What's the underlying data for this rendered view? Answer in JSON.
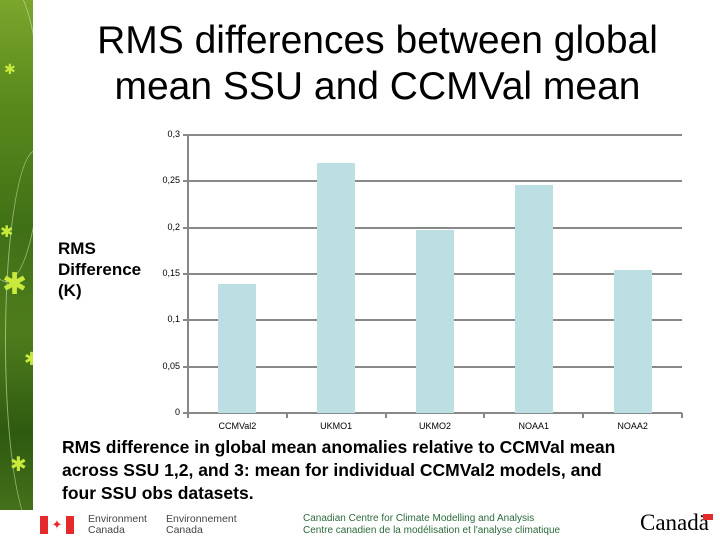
{
  "slide": {
    "title": "RMS differences between global mean SSU and CCMVal mean",
    "title_lines": [
      "RMS differences between global",
      "mean SSU and CCMVal mean"
    ],
    "y_axis_label_lines": [
      "RMS",
      "Difference",
      "(K)"
    ],
    "caption": "RMS difference in global mean anomalies relative to CCMVal mean across SSU 1,2, and 3: mean for individual CCMVal2 models, and four SSU obs datasets.",
    "caption_lines": [
      "RMS difference in global mean anomalies relative to CCMVal mean",
      "across SSU 1,2, and 3: mean for individual CCMVal2 models, and",
      "four SSU obs datasets."
    ]
  },
  "footer": {
    "dept_en_line1": "Environment",
    "dept_en_line2": "Canada",
    "dept_fr_line1": "Environnement",
    "dept_fr_line2": "Canada",
    "centre_en": "Canadian Centre for Climate Modelling and Analysis",
    "centre_fr": "Centre canadien de la modélisation et l'analyse climatique",
    "wordmark": "Canadä",
    "flag_icon": "canada-flag-icon"
  },
  "colors": {
    "bar": "#bbdfe3",
    "grid": "#888888",
    "sidebar_green": "#4f7d1c",
    "leaf": "#c8ea3c",
    "flag_red": "#e42a2a",
    "centre_text": "#2d6a3c"
  },
  "chart_data": {
    "type": "bar",
    "title": "RMS differences between global mean SSU and CCMVal mean",
    "xlabel": "",
    "ylabel": "RMS Difference (K)",
    "categories": [
      "CCMVal2",
      "UKMO1",
      "UKMO2",
      "NOAA1",
      "NOAA2"
    ],
    "values": [
      0.139,
      0.27,
      0.197,
      0.246,
      0.154
    ],
    "ylim": [
      0,
      0.3
    ],
    "yticks": [
      0,
      0.05,
      0.1,
      0.15,
      0.2,
      0.25,
      0.3
    ],
    "ytick_labels": [
      "0",
      "0,05",
      "0,1",
      "0,15",
      "0,2",
      "0,25",
      "0,3"
    ],
    "grid": true,
    "legend": null
  }
}
